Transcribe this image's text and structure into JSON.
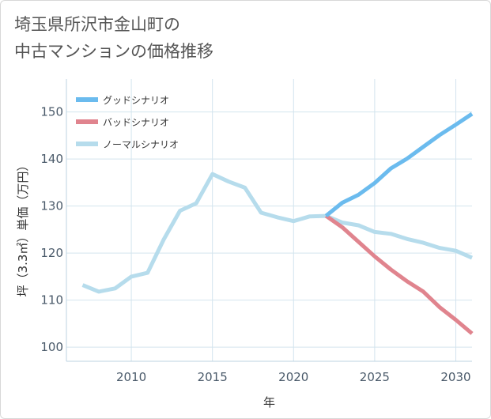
{
  "title_line1": "埼玉県所沢市金山町の",
  "title_line2": "中古マンションの価格推移",
  "chart_data": {
    "type": "line",
    "title": "埼玉県所沢市金山町の中古マンションの価格推移",
    "xlabel": "年",
    "ylabel": "坪（3.3㎡）単価（万円）",
    "xlim": [
      2006,
      2031
    ],
    "ylim": [
      97,
      157
    ],
    "xticks": [
      2010,
      2015,
      2020,
      2025,
      2030
    ],
    "yticks": [
      100,
      110,
      120,
      130,
      140,
      150
    ],
    "legend_position": "top-left",
    "series": [
      {
        "name": "グッドシナリオ",
        "color": "#6bbbee",
        "x": [
          2022,
          2023,
          2024,
          2025,
          2026,
          2027,
          2028,
          2029,
          2030,
          2031
        ],
        "y": [
          127.9,
          130.7,
          132.4,
          134.9,
          138.0,
          140.1,
          142.6,
          145.1,
          147.3,
          149.6
        ]
      },
      {
        "name": "バッドシナリオ",
        "color": "#e0848e",
        "x": [
          2022,
          2023,
          2024,
          2025,
          2026,
          2027,
          2028,
          2029,
          2030,
          2031
        ],
        "y": [
          127.9,
          125.5,
          122.4,
          119.3,
          116.5,
          114.0,
          111.8,
          108.5,
          105.8,
          102.9
        ]
      },
      {
        "name": "ノーマルシナリオ",
        "color": "#b6dcec",
        "x": [
          2007,
          2008,
          2009,
          2010,
          2011,
          2012,
          2013,
          2014,
          2015,
          2016,
          2017,
          2018,
          2019,
          2020,
          2021,
          2022,
          2023,
          2024,
          2025,
          2026,
          2027,
          2028,
          2029,
          2030,
          2031
        ],
        "y": [
          113.2,
          111.8,
          112.5,
          115.0,
          115.8,
          122.9,
          129.0,
          130.6,
          136.8,
          135.2,
          133.9,
          128.6,
          127.6,
          126.8,
          127.8,
          127.9,
          126.5,
          125.9,
          124.5,
          124.1,
          123.0,
          122.2,
          121.1,
          120.5,
          119.0
        ]
      }
    ]
  }
}
